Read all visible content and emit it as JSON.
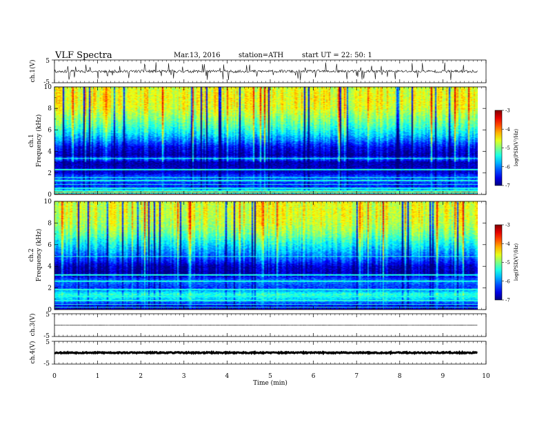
{
  "header": {
    "title": "VLF  Spectra",
    "date": "Mar.13, 2016",
    "station": "station=ATH",
    "start": "start  UT  =    22: 50: 1"
  },
  "chart_data": [
    {
      "type": "line",
      "panel": "ch1-waveform",
      "ylabel": "ch.1(V)",
      "yticks": [
        "5",
        "-5"
      ],
      "ylim": [
        -5,
        5
      ],
      "xlim": [
        0,
        10
      ],
      "signal_end_min": 9.8,
      "baseline": 0,
      "noise_amplitude": 0.6,
      "spike_count": 60,
      "color": "#000000"
    },
    {
      "type": "heatmap",
      "panel": "ch1-spectrogram",
      "ylabel": [
        "ch.1",
        "Frequency  (kHz)"
      ],
      "yticks": [
        "0",
        "2",
        "4",
        "6",
        "8",
        "10"
      ],
      "ylim": [
        0,
        10
      ],
      "xlim": [
        0,
        10
      ],
      "colorbar": {
        "label": "log(PSD(V²/Hz)",
        "ticks": [
          "-3",
          "-4",
          "-5",
          "-6",
          "-7"
        ],
        "range": [
          -7,
          -3
        ]
      },
      "profile": [
        {
          "f": 0.0,
          "v": -3.2
        },
        {
          "f": 0.2,
          "v": -4.0
        },
        {
          "f": 0.5,
          "v": -6.4
        },
        {
          "f": 1.0,
          "v": -6.3
        },
        {
          "f": 1.6,
          "v": -6.1
        },
        {
          "f": 2.0,
          "v": -6.7
        },
        {
          "f": 3.0,
          "v": -6.8
        },
        {
          "f": 3.3,
          "v": -6.0
        },
        {
          "f": 3.6,
          "v": -6.8
        },
        {
          "f": 4.4,
          "v": -6.5
        },
        {
          "f": 5.0,
          "v": -6.0
        },
        {
          "f": 5.6,
          "v": -5.6
        },
        {
          "f": 6.4,
          "v": -5.2
        },
        {
          "f": 7.2,
          "v": -4.9
        },
        {
          "f": 8.0,
          "v": -4.6
        },
        {
          "f": 9.0,
          "v": -4.5
        },
        {
          "f": 10.0,
          "v": -4.6
        }
      ],
      "lines_khz": [
        0.1,
        0.3,
        0.55,
        0.9,
        1.25,
        1.55,
        2.3,
        3.35
      ]
    },
    {
      "type": "heatmap",
      "panel": "ch2-spectrogram",
      "ylabel": [
        "ch.2",
        "Frequency  (kHz)"
      ],
      "yticks": [
        "0",
        "2",
        "4",
        "6",
        "8",
        "10"
      ],
      "ylim": [
        0,
        10
      ],
      "xlim": [
        0,
        10
      ],
      "colorbar": {
        "label": "log(PSD(V²/Hz)",
        "ticks": [
          "-3",
          "-4",
          "-5",
          "-6",
          "-7"
        ],
        "range": [
          -7,
          -3
        ]
      },
      "profile": [
        {
          "f": 0.0,
          "v": -6.8
        },
        {
          "f": 0.3,
          "v": -6.6
        },
        {
          "f": 1.0,
          "v": -5.6
        },
        {
          "f": 1.4,
          "v": -5.3
        },
        {
          "f": 2.0,
          "v": -6.3
        },
        {
          "f": 2.6,
          "v": -6.0
        },
        {
          "f": 3.4,
          "v": -6.8
        },
        {
          "f": 4.0,
          "v": -6.7
        },
        {
          "f": 4.6,
          "v": -6.2
        },
        {
          "f": 5.4,
          "v": -5.8
        },
        {
          "f": 6.2,
          "v": -5.4
        },
        {
          "f": 7.0,
          "v": -5.0
        },
        {
          "f": 8.0,
          "v": -4.7
        },
        {
          "f": 9.0,
          "v": -4.6
        },
        {
          "f": 10.0,
          "v": -4.6
        }
      ],
      "lines_khz": [
        0.2,
        0.45,
        0.8,
        1.2,
        1.85,
        2.6,
        3.2,
        4.9
      ]
    },
    {
      "type": "line",
      "panel": "ch3-waveform",
      "ylabel": "ch.3(V)",
      "yticks": [
        "5",
        "-5"
      ],
      "ylim": [
        -5,
        5
      ],
      "xlim": [
        0,
        10
      ],
      "signal_end_min": 9.8,
      "baseline": 0,
      "noise_amplitude": 0.05,
      "spike_count": 0,
      "color": "#000000"
    },
    {
      "type": "line",
      "panel": "ch4-waveform",
      "ylabel": "ch.4(V)",
      "yticks": [
        "5",
        "-5"
      ],
      "ylim": [
        -5,
        5
      ],
      "xlim": [
        0,
        10
      ],
      "signal_end_min": 9.8,
      "baseline": 0,
      "noise_amplitude": 0.25,
      "spike_count": 0,
      "color": "#000000"
    }
  ],
  "xaxis": {
    "label": "Time  (min)",
    "ticks": [
      "0",
      "1",
      "2",
      "3",
      "4",
      "5",
      "6",
      "7",
      "8",
      "9",
      "10"
    ]
  }
}
